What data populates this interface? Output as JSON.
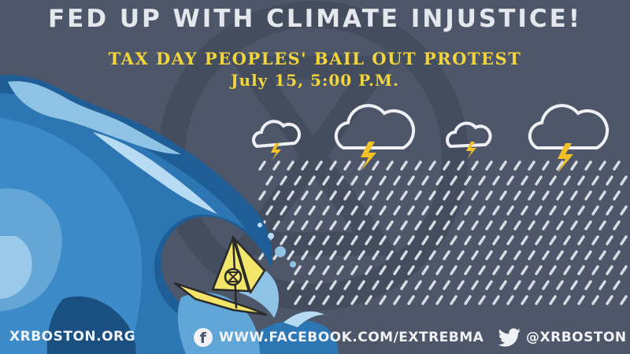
{
  "header": {
    "headline": "FED UP WITH CLIMATE INJUSTICE!",
    "event_title": "TAX DAY PEOPLES' BAIL OUT PROTEST",
    "event_datetime": "July 15, 5:00 P.M."
  },
  "footer": {
    "website": "XRBOSTON.ORG",
    "facebook": "WWW.FACEBOOK.COM/EXTREBMA",
    "facebook_icon": "facebook-icon",
    "twitter": "@XRBOSTON",
    "twitter_icon": "twitter-bird-icon"
  },
  "colors": {
    "background": "#4d5769",
    "headline": "#e4e7ec",
    "accent_yellow": "#f2d43c",
    "wave_dark": "#1f5d96",
    "wave_light": "#8fc3e6",
    "rain": "#d8dce3"
  },
  "illustration": {
    "icons": [
      "extinction-symbol-icon",
      "storm-cloud-icon",
      "lightning-bolt-icon",
      "sailboat-icon",
      "wave-icon"
    ]
  }
}
